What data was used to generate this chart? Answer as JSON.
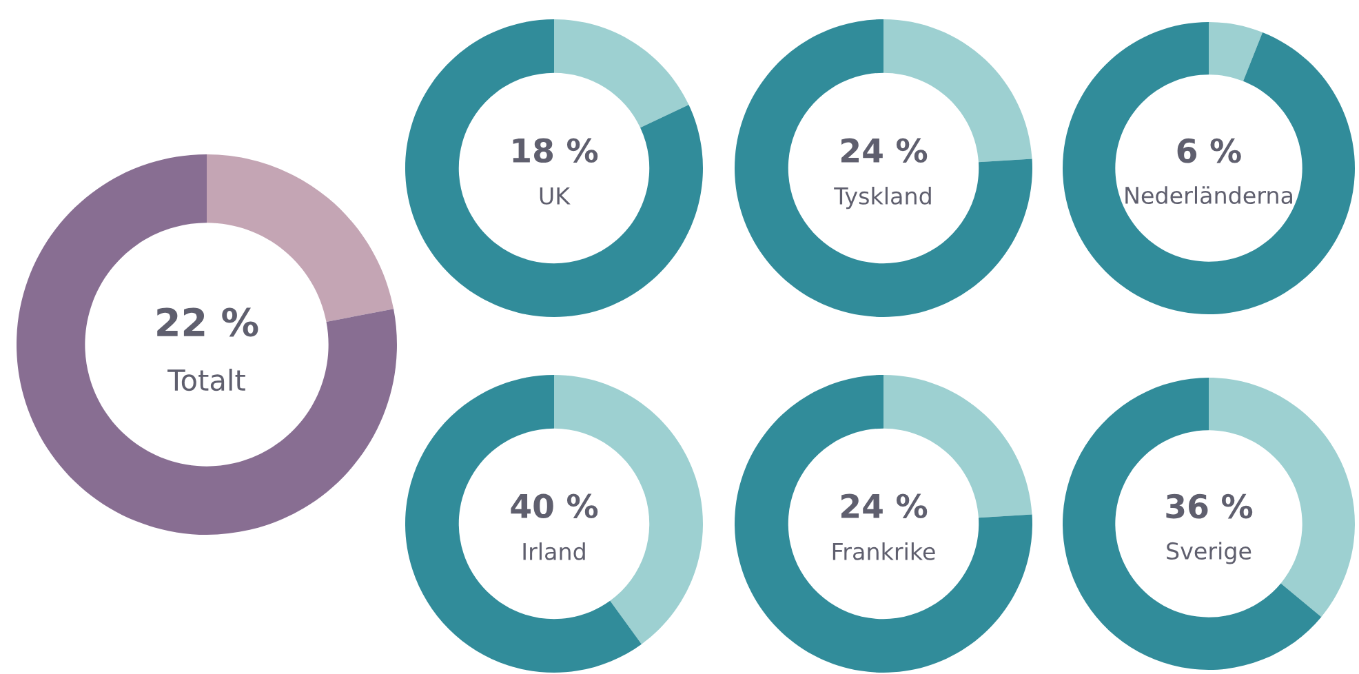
{
  "chart_data": [
    {
      "type": "donut",
      "title": "Totalt",
      "categories": [
        null,
        null
      ],
      "values": [
        22,
        78
      ],
      "colors": [
        "#c4a5b4",
        "#886e92"
      ],
      "value_labels": [
        "22 %",
        null
      ]
    },
    {
      "type": "donut",
      "title": "UK",
      "categories": [
        null,
        null
      ],
      "values": [
        18,
        82
      ],
      "colors": [
        "#9dd0d1",
        "#318c9a"
      ],
      "value_labels": [
        "18 %",
        null
      ]
    },
    {
      "type": "donut",
      "title": "Tyskland",
      "categories": [
        null,
        null
      ],
      "values": [
        24,
        76
      ],
      "colors": [
        "#9dd0d1",
        "#318c9a"
      ],
      "value_labels": [
        "24 %",
        null
      ]
    },
    {
      "type": "donut",
      "title": "Nederländerna",
      "categories": [
        null,
        null
      ],
      "values": [
        6,
        94
      ],
      "colors": [
        "#9dd0d1",
        "#318c9a"
      ],
      "value_labels": [
        "6 %",
        null
      ]
    },
    {
      "type": "donut",
      "title": "Irland",
      "categories": [
        null,
        null
      ],
      "values": [
        40,
        60
      ],
      "colors": [
        "#9dd0d1",
        "#318c9a"
      ],
      "value_labels": [
        "40 %",
        null
      ]
    },
    {
      "type": "donut",
      "title": "Frankrike",
      "categories": [
        null,
        null
      ],
      "values": [
        24,
        76
      ],
      "colors": [
        "#9dd0d1",
        "#318c9a"
      ],
      "value_labels": [
        "24 %",
        null
      ]
    },
    {
      "type": "donut",
      "title": "Sverige",
      "categories": [
        null,
        null
      ],
      "values": [
        36,
        64
      ],
      "colors": [
        "#9dd0d1",
        "#318c9a"
      ],
      "value_labels": [
        "36 %",
        null
      ]
    }
  ]
}
